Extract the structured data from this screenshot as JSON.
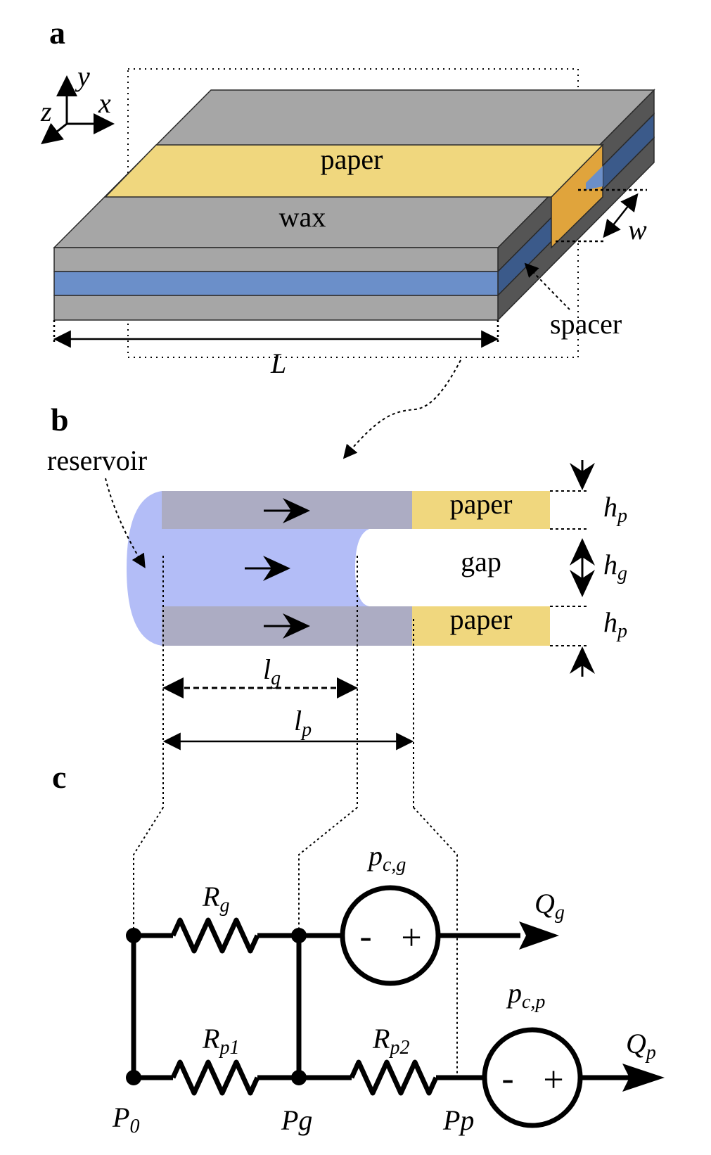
{
  "panels": {
    "a": {
      "label": "a",
      "axes": {
        "x": "x",
        "y": "y",
        "z": "z"
      },
      "layer_labels": {
        "paper": "paper",
        "wax": "wax",
        "spacer": "spacer"
      },
      "dimension_labels": {
        "L": "L",
        "w": "w"
      },
      "colors": {
        "wax": "#a6a6a6",
        "wax_dark": "#555555",
        "paper": "#f0d77e",
        "paper_dark": "#e0a43c",
        "channel": "#6b8fc9",
        "channel_dark": "#3b5a8a"
      }
    },
    "b": {
      "label": "b",
      "reservoir_label": "reservoir",
      "paper_top": "paper",
      "paper_bottom": "paper",
      "gap_label": "gap",
      "dimensions": {
        "hp_base": "h",
        "hp_sub": "p",
        "hg_base": "h",
        "hg_sub": "g",
        "lg_base": "l",
        "lg_sub": "g",
        "lp_base": "l",
        "lp_sub": "p"
      },
      "colors": {
        "fluid": "#b3bdf7",
        "wet_paper": "#acacc3",
        "paper": "#f0d77e"
      }
    },
    "c": {
      "label": "c",
      "resistors": {
        "rg_base": "R",
        "rg_sub": "g",
        "rp1_base": "R",
        "rp1_sub": "p1",
        "rp2_base": "R",
        "rp2_sub": "p2"
      },
      "sources": {
        "pcg_base": "p",
        "pcg_sub": "c,g",
        "pcp_base": "p",
        "pcp_sub": "c,p",
        "minus": "-",
        "plus": "+"
      },
      "flows": {
        "qg_base": "Q",
        "qg_sub": "g",
        "qp_base": "Q",
        "qp_sub": "p"
      },
      "nodes": {
        "p0_base": "P",
        "p0_sub": "0",
        "pg": "Pg",
        "pp": "Pp"
      }
    }
  }
}
